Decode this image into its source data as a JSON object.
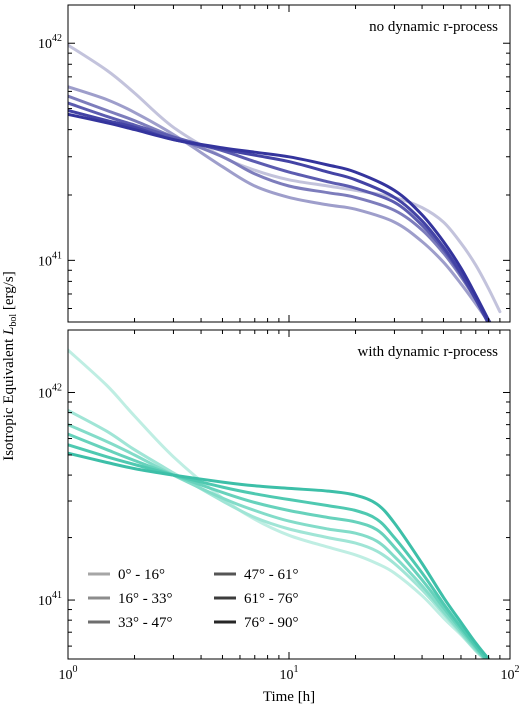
{
  "figure": {
    "ylabel_prefix": "Isotropic Equivalent ",
    "ylabel_symbol": "L",
    "ylabel_sub": "bol",
    "ylabel_unit": " [erg/s]",
    "xlabel": "Time [h]"
  },
  "chart_data": [
    {
      "type": "line",
      "title": "no dynamic r-process",
      "xscale": "log",
      "yscale": "log",
      "xlim": [
        1,
        100
      ],
      "ylim": [
        5.2e+40,
        1.5e+42
      ],
      "xticks": [
        {
          "value": 1,
          "base": "10",
          "exp": "0"
        },
        {
          "value": 10,
          "base": "10",
          "exp": "1"
        },
        {
          "value": 100,
          "base": "10",
          "exp": "2"
        }
      ],
      "yticks": [
        {
          "value": 1e+41,
          "base": "10",
          "exp": "41"
        },
        {
          "value": 1e+42,
          "base": "10",
          "exp": "42"
        }
      ],
      "x": [
        1,
        1.5,
        2,
        3,
        5,
        7,
        10,
        15,
        20,
        30,
        40,
        50,
        60,
        70,
        80,
        90
      ],
      "series": [
        {
          "name": "0° - 16°",
          "color": "#c3c3dc",
          "values": [
            9.8e+41,
            7.5e+41,
            5.9e+41,
            4.1e+41,
            3e+41,
            2.6e+41,
            2.35e+41,
            2.2e+41,
            2.1e+41,
            1.95e+41,
            1.75e+41,
            1.5e+41,
            1.2e+41,
            9.5e+40,
            7.4e+40,
            5.8e+40
          ]
        },
        {
          "name": "16° - 33°",
          "color": "#9e9ecb",
          "values": [
            6.3e+41,
            5.5e+41,
            4.8e+41,
            3.8e+41,
            2.7e+41,
            2.2e+41,
            1.95e+41,
            1.8e+41,
            1.72e+41,
            1.5e+41,
            1.22e+41,
            9.8e+40,
            7.8e+40,
            6.3e+40,
            5.2e+40,
            4.4e+40
          ]
        },
        {
          "name": "33° - 47°",
          "color": "#7d7dbc",
          "values": [
            5.7e+41,
            4.9e+41,
            4.4e+41,
            3.7e+41,
            3e+41,
            2.5e+41,
            2.2e+41,
            2.05e+41,
            1.95e+41,
            1.7e+41,
            1.38e+41,
            1.08e+41,
            8.4e+40,
            6.6e+40,
            5.3e+40,
            4.4e+40
          ]
        },
        {
          "name": "47° - 61°",
          "color": "#5c5cb0",
          "values": [
            5.3e+41,
            4.6e+41,
            4.2e+41,
            3.7e+41,
            3.2e+41,
            2.85e+41,
            2.55e+41,
            2.3e+41,
            2.15e+41,
            1.85e+41,
            1.45e+41,
            1.12e+41,
            8.6e+40,
            6.6e+40,
            5.2e+40,
            4.2e+40
          ]
        },
        {
          "name": "61° - 76°",
          "color": "#4343a5",
          "values": [
            4.9e+41,
            4.4e+41,
            4.1e+41,
            3.6e+41,
            3.25e+41,
            3.05e+41,
            2.85e+41,
            2.55e+41,
            2.35e+41,
            1.95e+41,
            1.52e+41,
            1.15e+41,
            8.7e+40,
            6.6e+40,
            5.1e+40,
            4.1e+40
          ]
        },
        {
          "name": "76° - 90°",
          "color": "#34349d",
          "values": [
            4.7e+41,
            4.3e+41,
            4e+41,
            3.6e+41,
            3.3e+41,
            3.15e+41,
            3e+41,
            2.75e+41,
            2.55e+41,
            2.1e+41,
            1.62e+41,
            1.22e+41,
            9.2e+40,
            6.9e+40,
            5.3e+40,
            4.2e+40
          ]
        }
      ]
    },
    {
      "type": "line",
      "title": "with dynamic r-process",
      "xscale": "log",
      "yscale": "log",
      "xlim": [
        1,
        100
      ],
      "ylim": [
        5.2e+40,
        2e+42
      ],
      "xticks": [
        {
          "value": 1,
          "base": "10",
          "exp": "0"
        },
        {
          "value": 10,
          "base": "10",
          "exp": "1"
        },
        {
          "value": 100,
          "base": "10",
          "exp": "2"
        }
      ],
      "yticks": [
        {
          "value": 1e+41,
          "base": "10",
          "exp": "41"
        },
        {
          "value": 1e+42,
          "base": "10",
          "exp": "42"
        }
      ],
      "x": [
        1,
        1.5,
        2,
        3,
        5,
        7,
        10,
        15,
        20,
        25,
        30,
        40,
        50,
        60,
        70,
        80
      ],
      "series": [
        {
          "name": "0° - 16°",
          "color": "#bfeee3",
          "values": [
            1.6e+42,
            1.08e+42,
            7.7e+41,
            4.9e+41,
            3.1e+41,
            2.45e+41,
            2.05e+41,
            1.8e+41,
            1.65e+41,
            1.5e+41,
            1.35e+41,
            1.05e+41,
            8.2e+40,
            6.8e+40,
            5.7e+40,
            5e+40
          ]
        },
        {
          "name": "16° - 33°",
          "color": "#a0e5d6",
          "values": [
            8.2e+41,
            6.5e+41,
            5.3e+41,
            4.1e+41,
            3e+41,
            2.5e+41,
            2.2e+41,
            2e+41,
            1.88e+41,
            1.72e+41,
            1.5e+41,
            1.12e+41,
            8.6e+40,
            6.9e+40,
            5.7e+40,
            5e+40
          ]
        },
        {
          "name": "33° - 47°",
          "color": "#83dcc9",
          "values": [
            7e+41,
            5.8e+41,
            5e+41,
            4e+41,
            3.1e+41,
            2.7e+41,
            2.4e+41,
            2.2e+41,
            2.1e+41,
            1.92e+41,
            1.62e+41,
            1.17e+41,
            8.8e+40,
            7e+40,
            5.8e+40,
            5e+40
          ]
        },
        {
          "name": "47° - 61°",
          "color": "#67d2bc",
          "values": [
            6.3e+41,
            5.3e+41,
            4.7e+41,
            4e+41,
            3.3e+41,
            2.95e+41,
            2.7e+41,
            2.5e+41,
            2.38e+41,
            2.18e+41,
            1.8e+41,
            1.25e+41,
            9.2e+40,
            7.2e+40,
            5.9e+40,
            5e+40
          ]
        },
        {
          "name": "61° - 76°",
          "color": "#4fc9b1",
          "values": [
            5.6e+41,
            4.9e+41,
            4.5e+41,
            4e+41,
            3.5e+41,
            3.25e+41,
            3.05e+41,
            2.85e+41,
            2.7e+41,
            2.45e+41,
            2e+41,
            1.35e+41,
            9.6e+40,
            7.4e+40,
            6e+40,
            5e+40
          ]
        },
        {
          "name": "76° - 90°",
          "color": "#3dbfa8",
          "values": [
            5.1e+41,
            4.6e+41,
            4.3e+41,
            4e+41,
            3.7e+41,
            3.55e+41,
            3.45e+41,
            3.35e+41,
            3.2e+41,
            2.9e+41,
            2.35e+41,
            1.5e+41,
            1.03e+41,
            7.8e+40,
            6.2e+40,
            5.2e+40
          ]
        }
      ]
    }
  ],
  "legend": {
    "placement": "bottom-left of lower panel",
    "entries": [
      {
        "label": "0° - 16°",
        "color": "#a6a6a6"
      },
      {
        "label": "16° - 33°",
        "color": "#8c8c8c"
      },
      {
        "label": "33° - 47°",
        "color": "#6e6e6e"
      },
      {
        "label": "47° - 61°",
        "color": "#555555"
      },
      {
        "label": "61° - 76°",
        "color": "#3c3c3c"
      },
      {
        "label": "76° - 90°",
        "color": "#262626"
      }
    ]
  }
}
